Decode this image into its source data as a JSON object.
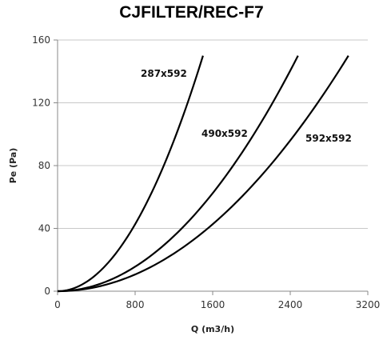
{
  "chart_data": {
    "type": "line",
    "title": "CJFILTER/REC-F7",
    "xlabel": "Q (m3/h)",
    "ylabel": "Pe (Pa)",
    "xlim": [
      0,
      3200
    ],
    "ylim": [
      0,
      160
    ],
    "x_ticks": [
      "0",
      "800",
      "1600",
      "2400",
      "3200"
    ],
    "y_ticks": [
      "0",
      "40",
      "80",
      "120",
      "160"
    ],
    "grid": "horizontal",
    "series": [
      {
        "name": "287x592",
        "x": [
          0,
          200,
          400,
          600,
          800,
          1000,
          1200,
          1400,
          1500
        ],
        "y": [
          0,
          2.7,
          10.7,
          24,
          42.7,
          66.7,
          96,
          130.7,
          150
        ]
      },
      {
        "name": "490x592",
        "x": [
          0,
          400,
          800,
          1200,
          1600,
          2000,
          2400,
          2480
        ],
        "y": [
          0,
          3.9,
          15.6,
          35.1,
          62.4,
          97.6,
          140.5,
          150
        ]
      },
      {
        "name": "592x592",
        "x": [
          0,
          500,
          1000,
          1500,
          2000,
          2500,
          3000
        ],
        "y": [
          0,
          4.2,
          16.7,
          37.5,
          66.7,
          104.2,
          150
        ]
      }
    ]
  }
}
